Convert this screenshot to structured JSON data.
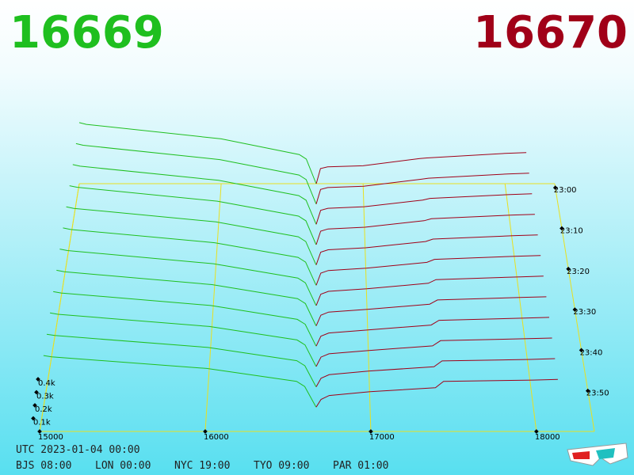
{
  "header": {
    "bid": "16669",
    "ask": "16670"
  },
  "chart_data": {
    "type": "depth3d",
    "xlim": [
      15000,
      18350
    ],
    "xticks": [
      15000,
      16000,
      17000,
      18000
    ],
    "tlim": [
      -1,
      60
    ],
    "tticks": [
      {
        "value": 0,
        "label": "23:00"
      },
      {
        "value": 10,
        "label": "23:10"
      },
      {
        "value": 20,
        "label": "23:20"
      },
      {
        "value": 30,
        "label": "23:30"
      },
      {
        "value": 40,
        "label": "23:40"
      },
      {
        "value": 50,
        "label": "23:50"
      }
    ],
    "zticks": [
      {
        "value": 100,
        "label": "0.1k"
      },
      {
        "value": 200,
        "label": "0.2k"
      },
      {
        "value": 300,
        "label": "0.3k"
      },
      {
        "value": 400,
        "label": "0.4k"
      }
    ],
    "bid_color": "#1fbf1f",
    "ask_color": "#a00018",
    "bid_prices": [
      15000,
      15050,
      16000,
      16550,
      16600,
      16669
    ],
    "ask_prices": [
      16670,
      16700,
      16750,
      17000,
      17400,
      17450,
      18000,
      18150
    ],
    "slices": [
      {
        "minute": -1,
        "bids": [
          545,
          530,
          400,
          260,
          220,
          0
        ],
        "asks": [
          0,
          135,
          150,
          160,
          225,
          230,
          270,
          277
        ]
      },
      {
        "minute": 4,
        "bids": [
          532,
          517,
          391,
          255,
          215,
          0
        ],
        "asks": [
          0,
          128,
          145,
          156,
          218,
          227,
          265,
          271
        ]
      },
      {
        "minute": 9,
        "bids": [
          519,
          505,
          382,
          249,
          209,
          0
        ],
        "asks": [
          0,
          121,
          139,
          153,
          211,
          225,
          259,
          266
        ]
      },
      {
        "minute": 14,
        "bids": [
          505,
          492,
          373,
          244,
          204,
          0
        ],
        "asks": [
          0,
          115,
          134,
          149,
          205,
          222,
          254,
          260
        ]
      },
      {
        "minute": 19,
        "bids": [
          492,
          479,
          364,
          238,
          198,
          0
        ],
        "asks": [
          0,
          108,
          128,
          145,
          198,
          219,
          248,
          254
        ]
      },
      {
        "minute": 24,
        "bids": [
          479,
          466,
          355,
          233,
          193,
          0
        ],
        "asks": [
          0,
          101,
          123,
          142,
          191,
          216,
          243,
          249
        ]
      },
      {
        "minute": 29,
        "bids": [
          466,
          454,
          345,
          227,
          187,
          0
        ],
        "asks": [
          0,
          94,
          117,
          138,
          184,
          214,
          237,
          243
        ]
      },
      {
        "minute": 34,
        "bids": [
          453,
          441,
          336,
          222,
          182,
          0
        ],
        "asks": [
          0,
          87,
          112,
          134,
          177,
          211,
          232,
          237
        ]
      },
      {
        "minute": 39,
        "bids": [
          439,
          428,
          327,
          216,
          176,
          0
        ],
        "asks": [
          0,
          80,
          106,
          131,
          170,
          208,
          226,
          232
        ]
      },
      {
        "minute": 44,
        "bids": [
          426,
          415,
          318,
          211,
          171,
          0
        ],
        "asks": [
          0,
          74,
          101,
          127,
          164,
          205,
          221,
          226
        ]
      },
      {
        "minute": 49,
        "bids": [
          413,
          403,
          309,
          205,
          165,
          0
        ],
        "asks": [
          0,
          67,
          95,
          124,
          157,
          203,
          215,
          221
        ]
      },
      {
        "minute": 54,
        "bids": [
          400,
          390,
          300,
          200,
          160,
          0
        ],
        "asks": [
          0,
          60,
          90,
          120,
          150,
          200,
          210,
          215
        ]
      }
    ]
  },
  "footer": {
    "utc": "UTC 2023-01-04 00:00",
    "cities": [
      "BJS 08:00",
      "LON 00:00",
      "NYC 19:00",
      "TYO 09:00",
      "PAR 01:00"
    ]
  }
}
